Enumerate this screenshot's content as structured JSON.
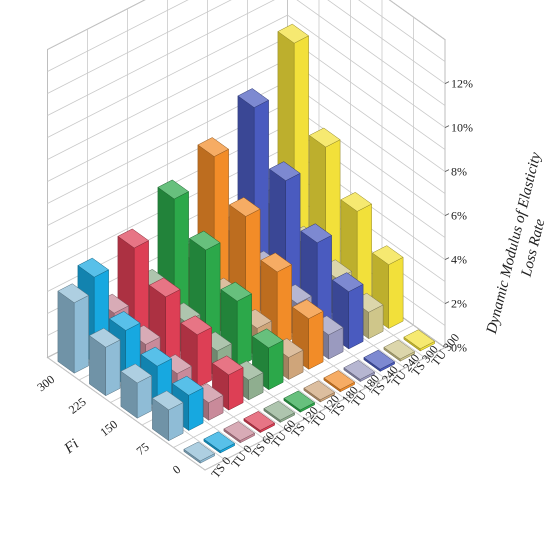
{
  "chart_data": {
    "type": "bar3d",
    "zlabel": [
      "Dynamic Modulus of Elasticity",
      "Loss Rate"
    ],
    "ylabel": "Fi",
    "zlim": [
      0,
      14
    ],
    "z_ticks": [
      "0%",
      "2%",
      "4%",
      "6%",
      "8%",
      "10%",
      "12%"
    ],
    "z_tick_values": [
      0,
      2,
      4,
      6,
      8,
      10,
      12
    ],
    "fi_levels": [
      "0",
      "75",
      "150",
      "225",
      "300"
    ],
    "groups": [
      "TS 0",
      "TU 0",
      "TS 60",
      "TU 60",
      "TS 120",
      "TU 120",
      "TS 180",
      "TU 180",
      "TS 240",
      "TU 240",
      "TS 300",
      "TU 300"
    ],
    "grid": true,
    "series": [
      {
        "values": [
          0.1,
          1.4,
          1.6,
          2.2,
          3.2
        ]
      },
      {
        "values": [
          0.1,
          1.6,
          1.9,
          2.5,
          3.9
        ]
      },
      {
        "values": [
          0.1,
          0.8,
          1.1,
          1.4,
          1.8
        ]
      },
      {
        "values": [
          0.1,
          1.6,
          2.4,
          3.1,
          4.3
        ]
      },
      {
        "values": [
          0.1,
          0.9,
          1.2,
          1.5,
          2.0
        ]
      },
      {
        "values": [
          0.1,
          1.9,
          3.0,
          4.3,
          5.6
        ]
      },
      {
        "values": [
          0.1,
          1.0,
          1.3,
          1.7,
          2.3
        ]
      },
      {
        "values": [
          0.1,
          2.3,
          3.4,
          4.9,
          6.6
        ]
      },
      {
        "values": [
          0.1,
          1.1,
          1.5,
          2.0,
          2.6
        ]
      },
      {
        "values": [
          0.1,
          2.6,
          3.8,
          5.6,
          7.9
        ]
      },
      {
        "values": [
          0.1,
          1.2,
          1.7,
          2.2,
          2.9
        ]
      },
      {
        "values": [
          0.1,
          2.9,
          4.3,
          6.2,
          9.9
        ]
      }
    ],
    "colors": [
      "#8fbcd6",
      "#17a8e0",
      "#c98a9a",
      "#dd3f55",
      "#8fae8f",
      "#2ca84a",
      "#cfa57a",
      "#f28c28",
      "#9a9abf",
      "#4a5bbf",
      "#cfc68a",
      "#f2e03a"
    ]
  }
}
